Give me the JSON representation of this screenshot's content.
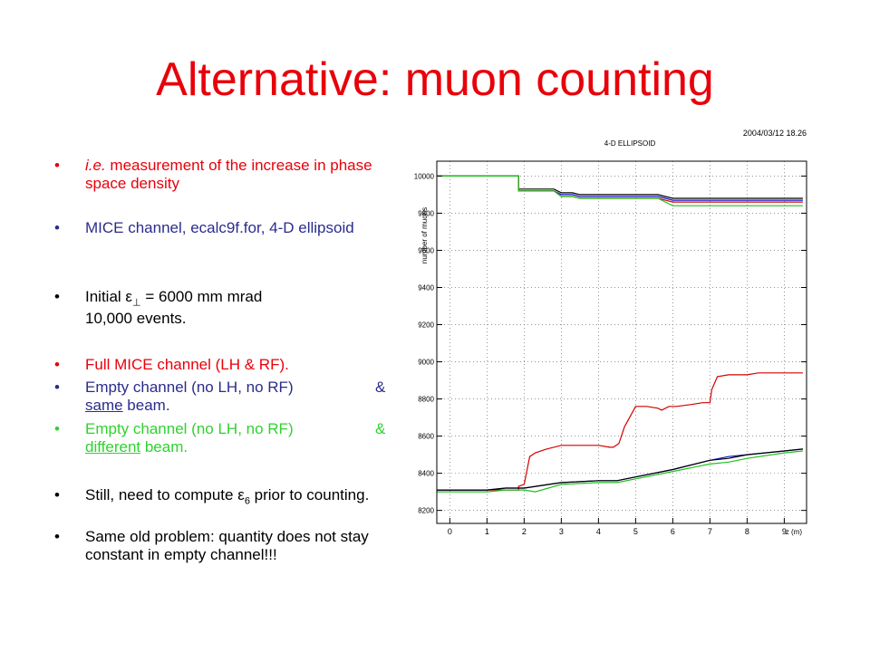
{
  "slide": {
    "title": "Alternative: muon counting",
    "bullet_char": "•",
    "bullets": {
      "b1_italic": "i.e.",
      "b1_rest": " measurement of the increase in phase space density",
      "b2": "MICE channel, ecalc9f.for, 4-D ellipsoid",
      "b3_pre": "Initial ",
      "b3_eps": "ε",
      "b3_sub": "⊥",
      "b3_post": " = 6000 mm mrad",
      "b3_line2": "10,000 events.",
      "b4": "Full MICE channel (LH & RF).",
      "b5_a": "Empty channel (no LH, no RF)",
      "b5_amp": "&",
      "b5_u": "same",
      "b5_b": " beam.",
      "b6_a": "Empty channel (no LH, no RF)",
      "b6_amp": "&",
      "b6_u": "different",
      "b6_b": " beam.",
      "b7_pre": "Still, need to compute ",
      "b7_eps": "ε",
      "b7_sub": "6",
      "b7_post": " prior to counting.",
      "b8": "Same old problem: quantity does not stay constant in empty channel!!!"
    }
  },
  "chart_data": {
    "type": "line",
    "title": "4-D ELLIPSOID",
    "datestamp": "2004/03/12   18.26",
    "xlabel": "z (m)",
    "ylabel": "number of muons",
    "xlim": [
      -0.35,
      9.6
    ],
    "ylim": [
      8130,
      10080
    ],
    "xticks": [
      0,
      1,
      2,
      3,
      4,
      5,
      6,
      7,
      8,
      9
    ],
    "yticks": [
      8200,
      8400,
      8600,
      8800,
      9000,
      9200,
      9400,
      9600,
      9800,
      10000
    ],
    "grid": true,
    "series": [
      {
        "color": "#d40000",
        "x": [
          -0.35,
          1.85,
          1.85,
          2.0,
          2.15,
          2.3,
          2.6,
          3.0,
          3.3,
          3.6,
          4.0,
          4.3,
          4.4,
          4.55,
          4.7,
          5.0,
          5.3,
          5.6,
          5.7,
          5.9,
          6.1,
          6.5,
          6.8,
          7.0,
          7.05,
          7.2,
          7.5,
          7.8,
          8.0,
          8.3,
          8.6,
          8.9,
          9.2,
          9.5
        ],
        "y": [
          8310,
          8310,
          8330,
          8340,
          8490,
          8510,
          8530,
          8550,
          8550,
          8550,
          8550,
          8540,
          8540,
          8560,
          8650,
          8760,
          8760,
          8750,
          8740,
          8760,
          8760,
          8770,
          8780,
          8780,
          8850,
          8920,
          8930,
          8930,
          8930,
          8940,
          8940,
          8940,
          8940,
          8940
        ]
      },
      {
        "color": "#1010c8",
        "x": [
          -0.35,
          1.0,
          1.5,
          2.0,
          3.0,
          4.0,
          4.5,
          5.0,
          6.0,
          7.0,
          7.5,
          8.0,
          9.0,
          9.5
        ],
        "y": [
          8310,
          8310,
          8320,
          8320,
          8350,
          8360,
          8360,
          8380,
          8420,
          8470,
          8490,
          8500,
          8520,
          8530
        ]
      },
      {
        "color": "#20c020",
        "x": [
          -0.35,
          1.0,
          1.5,
          2.0,
          2.3,
          3.0,
          4.0,
          4.5,
          5.0,
          6.0,
          7.0,
          7.5,
          8.0,
          9.0,
          9.5
        ],
        "y": [
          8300,
          8300,
          8310,
          8310,
          8300,
          8340,
          8350,
          8350,
          8370,
          8410,
          8450,
          8460,
          8480,
          8510,
          8520
        ]
      },
      {
        "color": "#000000",
        "x": [
          -0.35,
          1.0,
          1.5,
          2.0,
          3.0,
          4.0,
          4.5,
          5.0,
          6.0,
          7.0,
          7.5,
          8.0,
          9.0,
          9.5
        ],
        "y": [
          8310,
          8310,
          8320,
          8320,
          8350,
          8360,
          8360,
          8380,
          8420,
          8470,
          8480,
          8500,
          8520,
          8530
        ]
      },
      {
        "color": "#000000",
        "x": [
          -0.35,
          1.85,
          1.85,
          2.8,
          3.0,
          3.3,
          3.5,
          4.5,
          5.6,
          5.8,
          6.0,
          7.0,
          8.0,
          9.5
        ],
        "y": [
          10000,
          10000,
          9930,
          9930,
          9910,
          9910,
          9900,
          9900,
          9900,
          9890,
          9880,
          9880,
          9880,
          9880
        ]
      },
      {
        "color": "#1010c8",
        "x": [
          -0.35,
          1.85,
          1.85,
          2.8,
          3.0,
          3.3,
          3.5,
          4.5,
          5.6,
          5.8,
          6.0,
          7.0,
          8.0,
          9.5
        ],
        "y": [
          10000,
          10000,
          9920,
          9920,
          9900,
          9900,
          9890,
          9890,
          9890,
          9880,
          9870,
          9870,
          9870,
          9870
        ]
      },
      {
        "color": "#d40000",
        "x": [
          -0.35,
          1.85,
          1.85,
          2.8,
          3.0,
          3.3,
          3.5,
          4.5,
          5.6,
          5.8,
          6.0,
          7.0,
          8.0,
          9.5
        ],
        "y": [
          10000,
          10000,
          9920,
          9920,
          9890,
          9890,
          9880,
          9880,
          9880,
          9870,
          9860,
          9860,
          9860,
          9860
        ]
      },
      {
        "color": "#20c020",
        "x": [
          -0.35,
          1.85,
          1.85,
          2.8,
          3.0,
          3.3,
          3.5,
          4.5,
          5.6,
          5.8,
          6.0,
          7.0,
          8.0,
          9.5
        ],
        "y": [
          10000,
          10000,
          9920,
          9920,
          9890,
          9890,
          9880,
          9880,
          9880,
          9860,
          9840,
          9840,
          9840,
          9840
        ]
      }
    ]
  }
}
